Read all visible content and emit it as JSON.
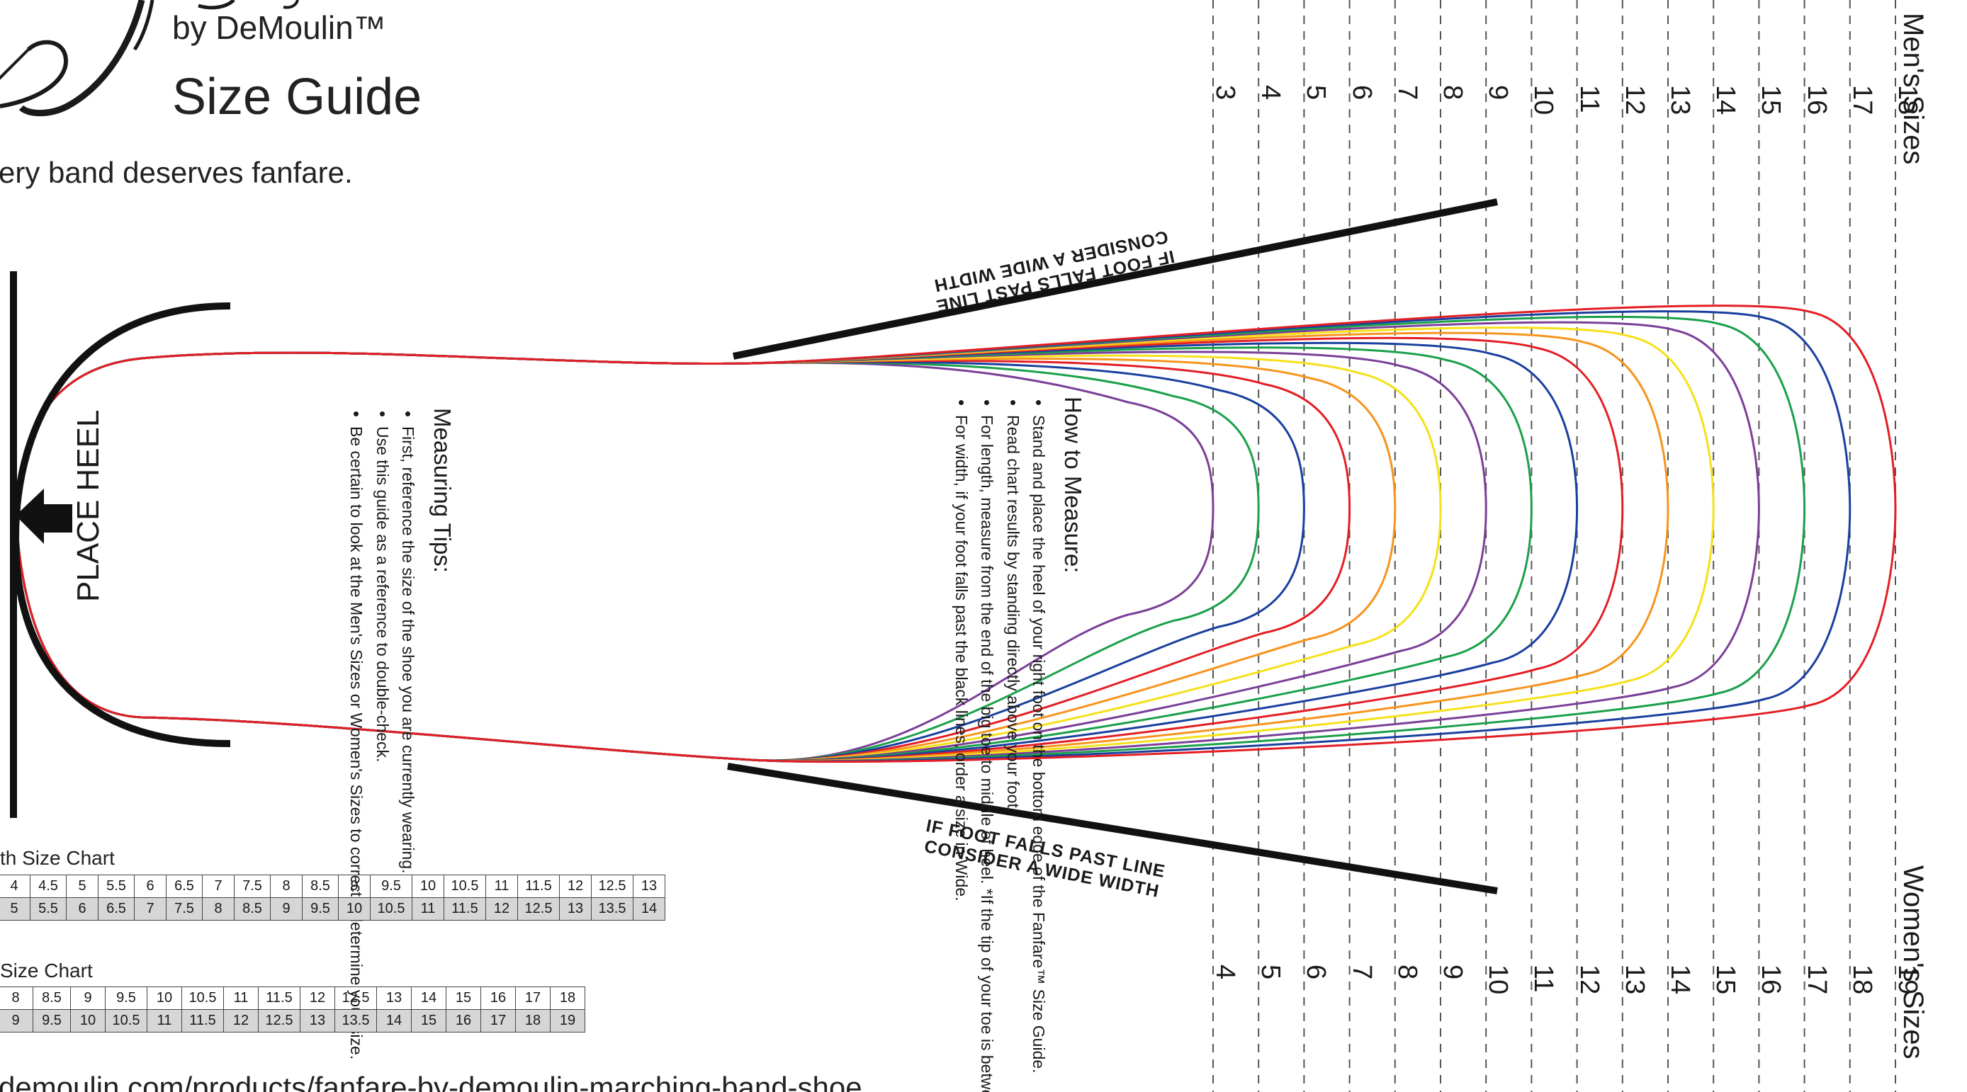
{
  "brand": {
    "by_line": "by DeMoulin™",
    "title": "Size Guide",
    "tagline": "ery band deserves fanfare.",
    "url": "demoulin.com/products/fanfare-by-demoulin-marching-band-shoe"
  },
  "diagram": {
    "place_heel": "PLACE HEEL",
    "measuring_tips": {
      "heading": "Measuring Tips:",
      "items": [
        "First, reference the size of the shoe you are currently wearing.",
        "Use this guide as a reference to double-check.",
        "Be certain to look at the Men's Sizes or Women's Sizes to correctly determine your size."
      ]
    },
    "how_to_measure": {
      "heading": "How to Measure:",
      "items": [
        "Stand and place the heel of your right foot on the bottom edge of the Fanfare™ Size Guide.",
        "Read chart results by standing directly above your foot.",
        "For length, measure from the end of the big toe to middle of heel. *If the tip of your toe is between sizes, order the half size.",
        "For width, if your foot falls past the black lines, order a size in Wide."
      ]
    },
    "wide_width_note": {
      "line1": "IF FOOT FALLS  PAST  LINE",
      "line2": "CONSIDER A WIDE WIDTH"
    },
    "mens_label": "Men's Sizes",
    "womens_label": "Women's Sizes",
    "mens_sizes": [
      "3",
      "4",
      "5",
      "6",
      "7",
      "8",
      "9",
      "10",
      "11",
      "12",
      "13",
      "14",
      "15",
      "16",
      "17",
      "18"
    ],
    "womens_sizes": [
      "4",
      "5",
      "6",
      "7",
      "8",
      "9",
      "10",
      "11",
      "12",
      "13",
      "14",
      "15",
      "16",
      "17",
      "18",
      "19"
    ],
    "outline_colors": [
      "#7b3f98",
      "#1aa04a",
      "#1a3f9e",
      "#e31e24",
      "#f7941d",
      "#f5e11a",
      "#7b3f98",
      "#1aa04a",
      "#1a3f9e",
      "#e31e24",
      "#f7941d",
      "#f5e11a",
      "#7b3f98",
      "#1aa04a",
      "#1a3f9e",
      "#e31e24"
    ]
  },
  "width_chart": {
    "caption": "th Size Chart",
    "row1": [
      "4",
      "4.5",
      "5",
      "5.5",
      "6",
      "6.5",
      "7",
      "7.5",
      "8",
      "8.5",
      "9",
      "9.5",
      "10",
      "10.5",
      "11",
      "11.5",
      "12",
      "12.5",
      "13"
    ],
    "row2": [
      "5",
      "5.5",
      "6",
      "6.5",
      "7",
      "7.5",
      "8",
      "8.5",
      "9",
      "9.5",
      "10",
      "10.5",
      "11",
      "11.5",
      "12",
      "12.5",
      "13",
      "13.5",
      "14"
    ]
  },
  "size_chart": {
    "caption": "Size Chart",
    "row1": [
      "8",
      "8.5",
      "9",
      "9.5",
      "10",
      "10.5",
      "11",
      "11.5",
      "12",
      "12.5",
      "13",
      "14",
      "15",
      "16",
      "17",
      "18"
    ],
    "row2": [
      "9",
      "9.5",
      "10",
      "10.5",
      "11",
      "11.5",
      "12",
      "12.5",
      "13",
      "13.5",
      "14",
      "15",
      "16",
      "17",
      "18",
      "19"
    ]
  }
}
